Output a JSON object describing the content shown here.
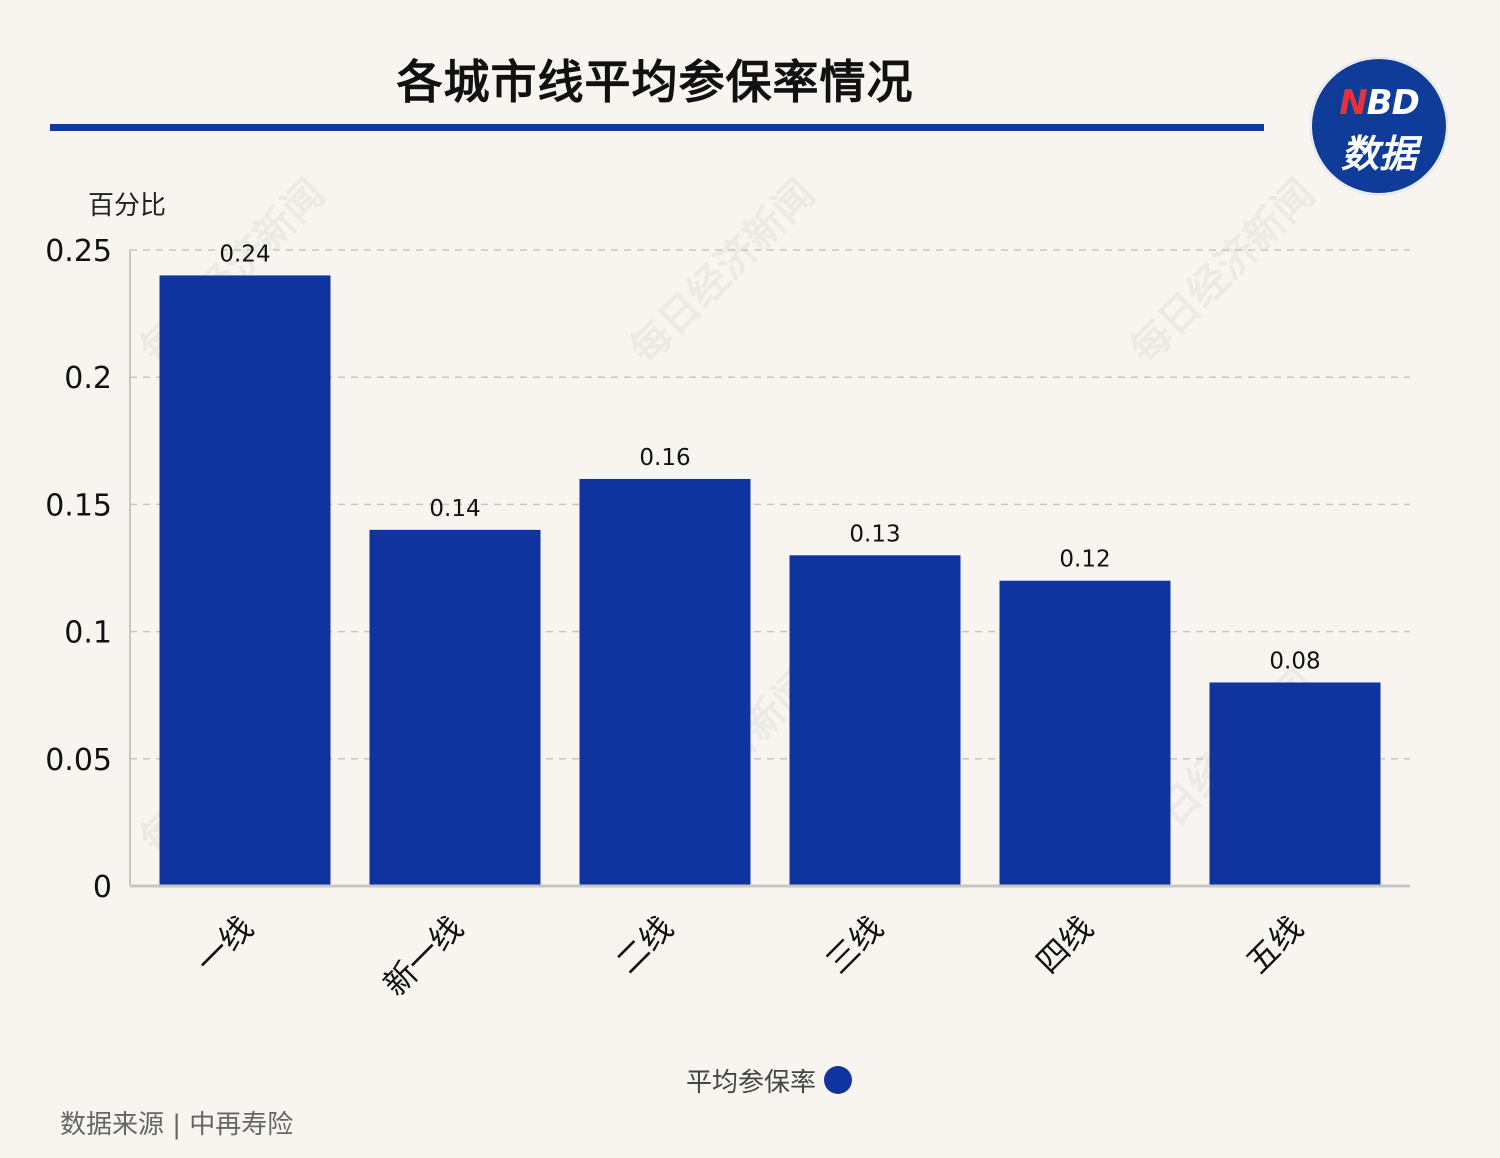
{
  "title": "各城市线平均参保率情况",
  "logo": {
    "brand_n": "N",
    "brand_rest": "BD",
    "sub": "数据"
  },
  "watermark_text": "每日经济新闻",
  "legend": {
    "label": "平均参保率",
    "color": "#0f34a0"
  },
  "source": "数据来源 | 中再寿险",
  "chart_data": {
    "type": "bar",
    "ylabel": "百分比",
    "categories": [
      "一线",
      "新一线",
      "二线",
      "三线",
      "四线",
      "五线"
    ],
    "series": [
      {
        "name": "平均参保率",
        "values": [
          0.24,
          0.14,
          0.16,
          0.13,
          0.12,
          0.08
        ],
        "color": "#0f34a0"
      }
    ],
    "value_labels": [
      "0.24",
      "0.14",
      "0.16",
      "0.13",
      "0.12",
      "0.08"
    ],
    "ylim": [
      0,
      0.25
    ],
    "yticks": [
      "0",
      "0.05",
      "0.1",
      "0.15",
      "0.2",
      "0.25"
    ],
    "grid": true,
    "legend_position": "bottom-center"
  }
}
